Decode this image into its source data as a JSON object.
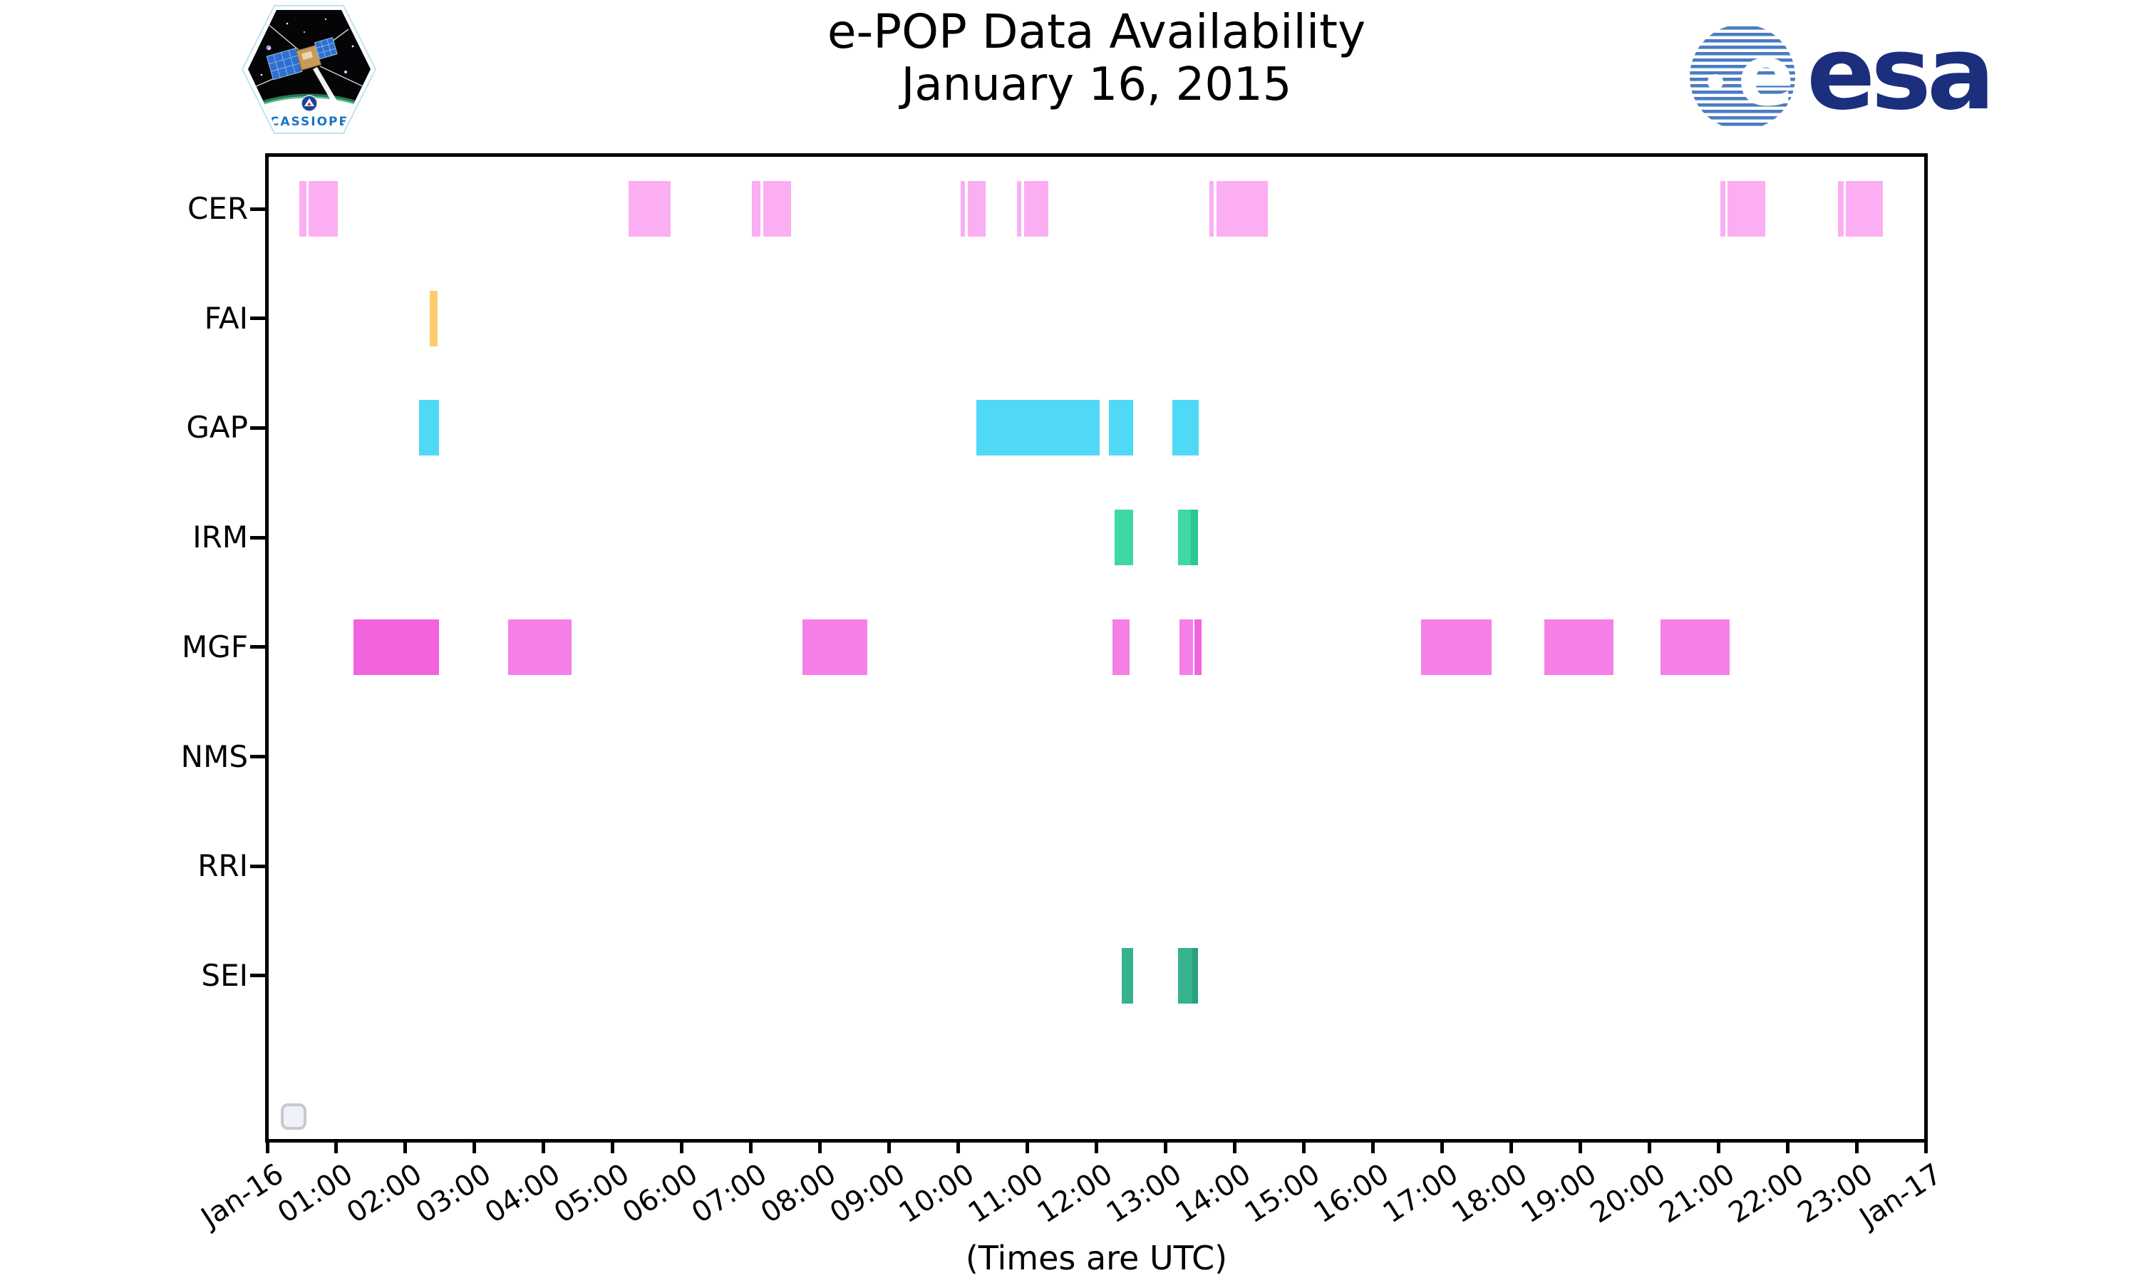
{
  "title": {
    "line1": "e-POP Data Availability",
    "line2": "January 16, 2015"
  },
  "branding": {
    "cassiope_label": "CASSIOPE",
    "esa_label": "esa"
  },
  "colors": {
    "axis": "#000000",
    "cer": "#FBAEF2",
    "fai": "#FCCC6B",
    "gap": "#4FD9F6",
    "irm": "#3FD7A4",
    "irm_dark": "#2CC695",
    "mgf": "#F57FE7",
    "mgf_dark": "#F164DD",
    "sei": "#37B28E",
    "sei_dark": "#28A180",
    "esa_blue": "#1B2F7D",
    "esa_globe_blue": "#4A7CC2",
    "cassiope_text_blue": "#1A73C8"
  },
  "chart_data": {
    "type": "bar",
    "variant": "horizontal-availability-timeline",
    "title": "e-POP Data Availability January 16, 2015",
    "xlabel": "(Times are UTC)",
    "ylabel": "",
    "grid": false,
    "legend_position": "lower-left-empty-box",
    "x_range": [
      "Jan-16 00:00",
      "Jan-17 00:00"
    ],
    "x_tick_labels": [
      "Jan-16",
      "01:00",
      "02:00",
      "03:00",
      "04:00",
      "05:00",
      "06:00",
      "07:00",
      "08:00",
      "09:00",
      "10:00",
      "11:00",
      "12:00",
      "13:00",
      "14:00",
      "15:00",
      "16:00",
      "17:00",
      "18:00",
      "19:00",
      "20:00",
      "21:00",
      "22:00",
      "23:00",
      "Jan-17"
    ],
    "categories": [
      "CER",
      "FAI",
      "GAP",
      "IRM",
      "MGF",
      "NMS",
      "RRI",
      "SEI"
    ],
    "series": [
      {
        "name": "CER",
        "color": "#FBAEF2",
        "segments": [
          {
            "start": "00:28",
            "end": "00:34",
            "color": "#FBAEF2"
          },
          {
            "start": "00:36",
            "end": "01:01",
            "color": "#FBAEF2"
          },
          {
            "start": "05:14",
            "end": "05:50",
            "color": "#FBAEF2"
          },
          {
            "start": "07:01",
            "end": "07:08",
            "color": "#FBAEF2"
          },
          {
            "start": "07:11",
            "end": "07:35",
            "color": "#FBAEF2"
          },
          {
            "start": "10:02",
            "end": "10:06",
            "color": "#FBAEF2"
          },
          {
            "start": "10:08",
            "end": "10:24",
            "color": "#FBAEF2"
          },
          {
            "start": "10:51",
            "end": "10:55",
            "color": "#FBAEF2"
          },
          {
            "start": "10:57",
            "end": "11:18",
            "color": "#FBAEF2"
          },
          {
            "start": "13:38",
            "end": "13:42",
            "color": "#FBAEF2"
          },
          {
            "start": "13:44",
            "end": "14:29",
            "color": "#FBAEF2"
          },
          {
            "start": "21:02",
            "end": "21:06",
            "color": "#FBAEF2"
          },
          {
            "start": "21:08",
            "end": "21:41",
            "color": "#FBAEF2"
          },
          {
            "start": "22:44",
            "end": "22:49",
            "color": "#FBAEF2"
          },
          {
            "start": "22:51",
            "end": "23:23",
            "color": "#FBAEF2"
          }
        ]
      },
      {
        "name": "FAI",
        "color": "#FCCC6B",
        "segments": [
          {
            "start": "02:21",
            "end": "02:28",
            "color": "#FCCC6B"
          }
        ]
      },
      {
        "name": "GAP",
        "color": "#4FD9F6",
        "segments": [
          {
            "start": "02:12",
            "end": "02:29",
            "color": "#4FD9F6"
          },
          {
            "start": "10:16",
            "end": "12:03",
            "color": "#4FD9F6"
          },
          {
            "start": "12:11",
            "end": "12:32",
            "color": "#4FD9F6"
          },
          {
            "start": "13:06",
            "end": "13:29",
            "color": "#4FD9F6"
          }
        ]
      },
      {
        "name": "IRM",
        "color": "#3FD7A4",
        "segments": [
          {
            "start": "12:16",
            "end": "12:32",
            "color": "#3FD7A4"
          },
          {
            "start": "13:11",
            "end": "13:22",
            "color": "#3FD7A4"
          },
          {
            "start": "13:22",
            "end": "13:28",
            "color": "#2CC695"
          }
        ]
      },
      {
        "name": "MGF",
        "color": "#F57FE7",
        "segments": [
          {
            "start": "01:15",
            "end": "02:29",
            "color": "#F164DD"
          },
          {
            "start": "03:29",
            "end": "04:24",
            "color": "#F57FE7"
          },
          {
            "start": "07:45",
            "end": "08:41",
            "color": "#F57FE7"
          },
          {
            "start": "12:14",
            "end": "12:29",
            "color": "#F57FE7"
          },
          {
            "start": "13:12",
            "end": "13:24",
            "color": "#F57FE7"
          },
          {
            "start": "13:25",
            "end": "13:31",
            "color": "#F164DD"
          },
          {
            "start": "16:42",
            "end": "17:43",
            "color": "#F57FE7"
          },
          {
            "start": "18:29",
            "end": "19:29",
            "color": "#F57FE7"
          },
          {
            "start": "20:10",
            "end": "21:10",
            "color": "#F57FE7"
          }
        ]
      },
      {
        "name": "NMS",
        "color": "#F57FE7",
        "segments": []
      },
      {
        "name": "RRI",
        "color": "#F57FE7",
        "segments": []
      },
      {
        "name": "SEI",
        "color": "#37B28E",
        "segments": [
          {
            "start": "12:22",
            "end": "12:32",
            "color": "#37B28E"
          },
          {
            "start": "13:11",
            "end": "13:23",
            "color": "#37B28E"
          },
          {
            "start": "13:23",
            "end": "13:28",
            "color": "#28A180"
          }
        ]
      }
    ]
  }
}
